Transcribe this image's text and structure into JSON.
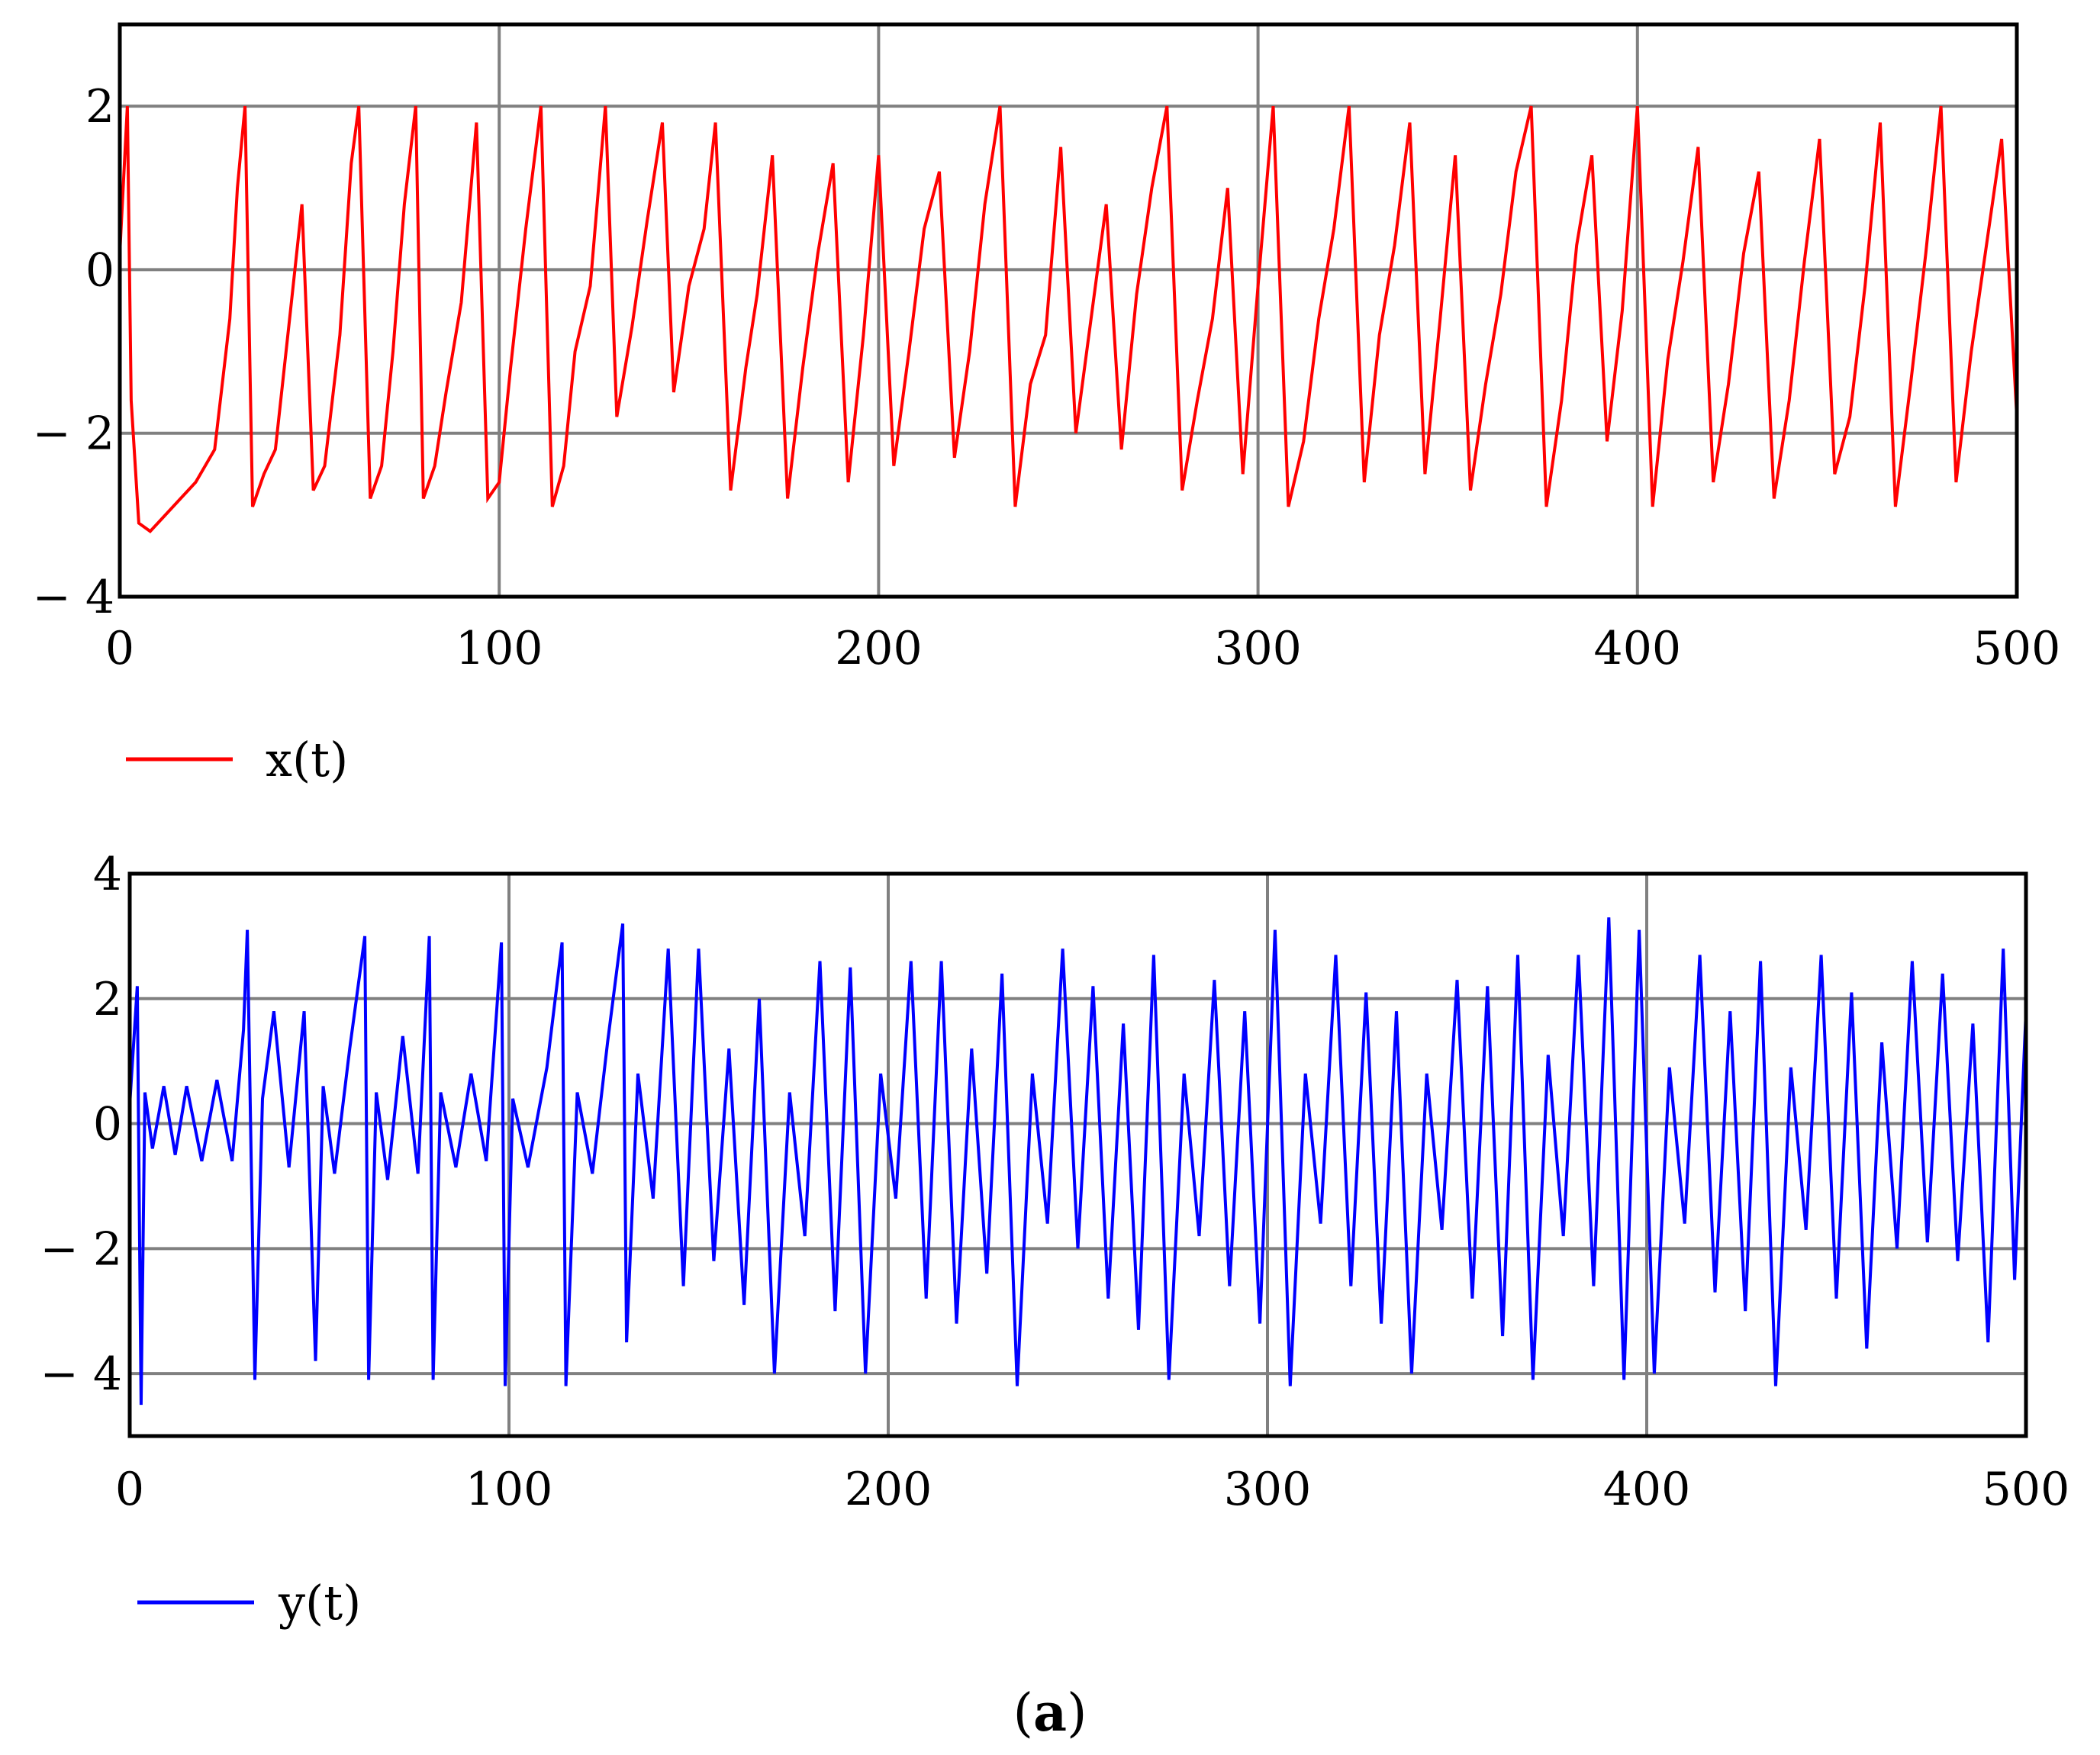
{
  "chart_data": [
    {
      "type": "line",
      "series": [
        {
          "name": "x(t)",
          "color": "#ff0000"
        }
      ],
      "xlim": [
        0,
        500
      ],
      "ylim": [
        -4,
        3
      ],
      "xticks": [
        0,
        100,
        200,
        300,
        400,
        500
      ],
      "yticks": [
        -4,
        -2,
        0,
        2
      ],
      "xtick_labels": [
        "0",
        "100",
        "200",
        "300",
        "400",
        "500"
      ],
      "ytick_labels": [
        "− 4",
        "− 2",
        "0",
        "2"
      ],
      "grid": true,
      "legend": "bottom-left",
      "x": [
        0,
        2,
        3,
        5,
        8,
        12,
        16,
        20,
        25,
        29,
        31,
        33,
        35,
        38,
        41,
        45,
        48,
        51,
        54,
        58,
        61,
        63,
        66,
        69,
        72,
        75,
        78,
        80,
        83,
        86,
        90,
        94,
        97,
        100,
        103,
        107,
        111,
        114,
        117,
        120,
        124,
        128,
        131,
        135,
        139,
        143,
        146,
        150,
        154,
        157,
        161,
        165,
        168,
        172,
        176,
        180,
        184,
        188,
        192,
        196,
        200,
        204,
        208,
        212,
        216,
        220,
        224,
        228,
        232,
        236,
        240,
        244,
        248,
        252,
        256,
        260,
        264,
        268,
        272,
        276,
        280,
        284,
        288,
        292,
        296,
        300,
        304,
        308,
        312,
        316,
        320,
        324,
        328,
        332,
        336,
        340,
        344,
        348,
        352,
        356,
        360,
        364,
        368,
        372,
        376,
        380,
        384,
        388,
        392,
        396,
        400,
        404,
        408,
        412,
        416,
        420,
        424,
        428,
        432,
        436,
        440,
        444,
        448,
        452,
        456,
        460,
        464,
        468,
        472,
        476,
        480,
        484,
        488,
        492,
        496,
        500
      ],
      "values": [
        0.2,
        2.0,
        -1.6,
        -3.1,
        -3.2,
        -3.0,
        -2.8,
        -2.6,
        -2.2,
        -0.6,
        1.0,
        2.0,
        -2.9,
        -2.5,
        -2.2,
        -0.5,
        0.8,
        -2.7,
        -2.4,
        -0.8,
        1.3,
        2.0,
        -2.8,
        -2.4,
        -1.0,
        0.8,
        2.0,
        -2.8,
        -2.4,
        -1.5,
        -0.4,
        1.8,
        -2.8,
        -2.6,
        -1.2,
        0.5,
        2.0,
        -2.9,
        -2.4,
        -1.0,
        -0.2,
        2.0,
        -1.8,
        -0.7,
        0.6,
        1.8,
        -1.5,
        -0.2,
        0.5,
        1.8,
        -2.7,
        -1.2,
        -0.3,
        1.4,
        -2.8,
        -1.2,
        0.2,
        1.3,
        -2.6,
        -0.8,
        1.4,
        -2.4,
        -1.0,
        0.5,
        1.2,
        -2.3,
        -1.0,
        0.8,
        2.0,
        -2.9,
        -1.4,
        -0.8,
        1.5,
        -2.0,
        -0.6,
        0.8,
        -2.2,
        -0.3,
        1.0,
        2.0,
        -2.7,
        -1.6,
        -0.6,
        1.0,
        -2.5,
        -0.2,
        2.0,
        -2.9,
        -2.1,
        -0.6,
        0.5,
        2.0,
        -2.6,
        -0.8,
        0.3,
        1.8,
        -2.5,
        -0.6,
        1.4,
        -2.7,
        -1.4,
        -0.3,
        1.2,
        2.0,
        -2.9,
        -1.6,
        0.3,
        1.4,
        -2.1,
        -0.5,
        2.0,
        -2.9,
        -1.1,
        0.1,
        1.5,
        -2.6,
        -1.4,
        0.2,
        1.2,
        -2.8,
        -1.6,
        0.1,
        1.6,
        -2.5,
        -1.8,
        -0.2,
        1.8,
        -2.9,
        -1.4,
        0.2,
        2.0,
        -2.6,
        -1.0,
        0.3,
        1.6,
        -1.8
      ]
    },
    {
      "type": "line",
      "series": [
        {
          "name": "y(t)",
          "color": "#0000ff"
        }
      ],
      "xlim": [
        0,
        500
      ],
      "ylim": [
        -5,
        4
      ],
      "xticks": [
        0,
        100,
        200,
        300,
        400,
        500
      ],
      "yticks": [
        -4,
        -2,
        0,
        2,
        4
      ],
      "xtick_labels": [
        "0",
        "100",
        "200",
        "300",
        "400",
        "500"
      ],
      "ytick_labels": [
        "− 4",
        "− 2",
        "0",
        "2",
        "4"
      ],
      "grid": true,
      "legend": "bottom-left",
      "x": [
        0,
        2,
        3,
        4,
        6,
        9,
        12,
        15,
        19,
        23,
        27,
        30,
        31,
        33,
        35,
        38,
        42,
        46,
        49,
        51,
        54,
        58,
        62,
        63,
        65,
        68,
        72,
        76,
        79,
        80,
        82,
        86,
        90,
        94,
        98,
        99,
        101,
        105,
        110,
        114,
        115,
        118,
        122,
        126,
        130,
        131,
        134,
        138,
        142,
        146,
        150,
        154,
        158,
        162,
        166,
        170,
        174,
        178,
        182,
        186,
        190,
        194,
        198,
        202,
        206,
        210,
        214,
        218,
        222,
        226,
        230,
        234,
        238,
        242,
        246,
        250,
        254,
        258,
        262,
        266,
        270,
        274,
        278,
        282,
        286,
        290,
        294,
        298,
        302,
        306,
        310,
        314,
        318,
        322,
        326,
        330,
        334,
        338,
        342,
        346,
        350,
        354,
        358,
        362,
        366,
        370,
        374,
        378,
        382,
        386,
        390,
        394,
        398,
        402,
        406,
        410,
        414,
        418,
        422,
        426,
        430,
        434,
        438,
        442,
        446,
        450,
        454,
        458,
        462,
        466,
        470,
        474,
        478,
        482,
        486,
        490,
        494,
        497,
        500
      ],
      "values": [
        0.3,
        2.2,
        -4.5,
        0.5,
        -0.4,
        0.6,
        -0.5,
        0.6,
        -0.6,
        0.7,
        -0.6,
        1.5,
        3.1,
        -4.1,
        0.4,
        1.8,
        -0.7,
        1.8,
        -3.8,
        0.6,
        -0.8,
        1.2,
        3.0,
        -4.1,
        0.5,
        -0.9,
        1.4,
        -0.8,
        3.0,
        -4.1,
        0.5,
        -0.7,
        0.8,
        -0.6,
        2.9,
        -4.2,
        0.4,
        -0.7,
        0.9,
        2.9,
        -4.2,
        0.5,
        -0.8,
        1.3,
        3.2,
        -3.5,
        0.8,
        -1.2,
        2.8,
        -2.6,
        2.8,
        -2.2,
        1.2,
        -2.9,
        2.0,
        -4.0,
        0.5,
        -1.8,
        2.6,
        -3.0,
        2.5,
        -4.0,
        0.8,
        -1.2,
        2.6,
        -2.8,
        2.6,
        -3.2,
        1.2,
        -2.4,
        2.4,
        -4.2,
        0.8,
        -1.6,
        2.8,
        -2.0,
        2.2,
        -2.8,
        1.6,
        -3.3,
        2.7,
        -4.1,
        0.8,
        -1.8,
        2.3,
        -2.6,
        1.8,
        -3.2,
        3.1,
        -4.2,
        0.8,
        -1.6,
        2.7,
        -2.6,
        2.1,
        -3.2,
        1.8,
        -4.0,
        0.8,
        -1.7,
        2.3,
        -2.8,
        2.2,
        -3.4,
        2.7,
        -4.1,
        1.1,
        -1.8,
        2.7,
        -2.6,
        3.3,
        -4.1,
        3.1,
        -4.0,
        0.9,
        -1.6,
        2.7,
        -2.7,
        1.8,
        -3.0,
        2.6,
        -4.2,
        0.9,
        -1.7,
        2.7,
        -2.8,
        2.1,
        -3.6,
        1.3,
        -2.0,
        2.6,
        -1.9,
        2.4,
        -2.2,
        1.6,
        -3.5,
        2.8,
        -2.5,
        1.8
      ]
    }
  ],
  "caption": {
    "open": "(",
    "letter": "a",
    "close": ")"
  }
}
